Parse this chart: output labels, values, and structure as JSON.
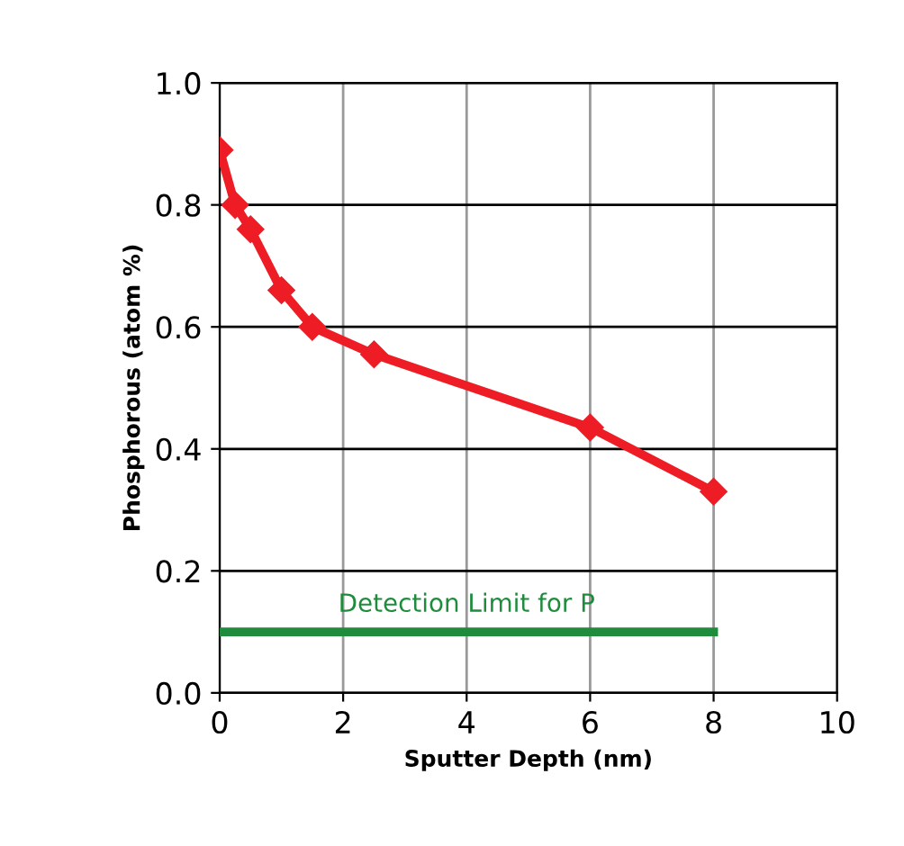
{
  "chart_data": {
    "type": "line",
    "xlabel": "Sputter Depth (nm)",
    "ylabel": "Phosphorous (atom %)",
    "xlim": [
      0,
      10
    ],
    "xticks": [
      0,
      2,
      4,
      6,
      8,
      10
    ],
    "ylim": [
      0,
      1
    ],
    "yticks": [
      {
        "value": 0,
        "label": "0.0"
      },
      {
        "value": 0.2,
        "label": "0.2"
      },
      {
        "value": 0.4,
        "label": "0.4"
      },
      {
        "value": 0.6,
        "label": "0.6"
      },
      {
        "value": 0.8,
        "label": "0.8"
      },
      {
        "value": 1,
        "label": "1.0"
      }
    ],
    "grid": true,
    "series": [
      {
        "color": "#ee1c25",
        "marker": "diamond",
        "x": [
          0,
          0.25,
          0.5,
          1,
          1.5,
          2.5,
          6,
          8
        ],
        "values": [
          0.89,
          0.8,
          0.76,
          0.66,
          0.6,
          0.555,
          0.435,
          0.33
        ]
      },
      {
        "color": "#1e8c3c",
        "marker": "none",
        "x": [
          0,
          8
        ],
        "values": [
          0.1,
          0.1
        ]
      }
    ],
    "annotations": [
      {
        "text": "Detection Limit for P",
        "x": 4,
        "y": 0.1
      }
    ]
  }
}
